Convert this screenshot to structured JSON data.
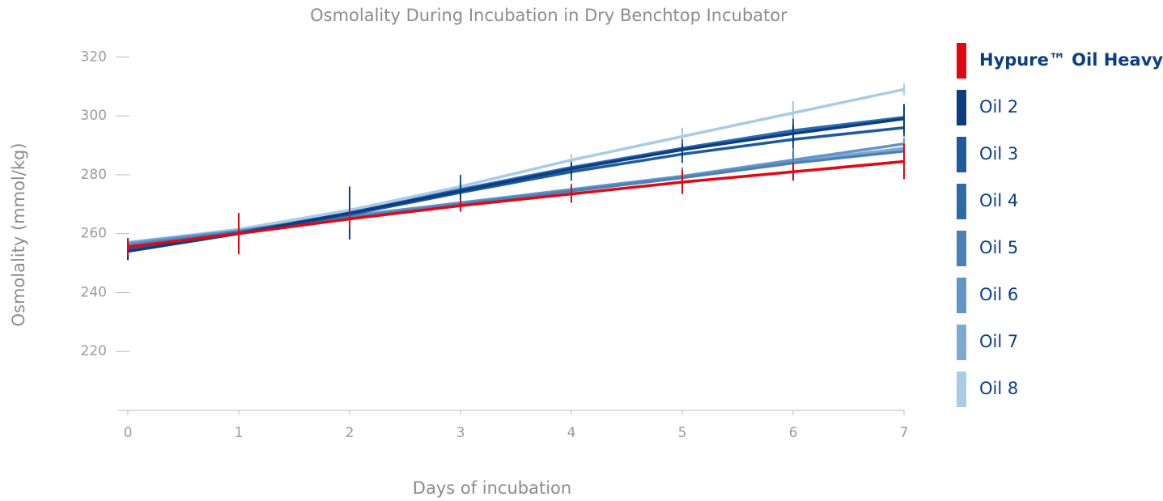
{
  "chart_data": {
    "type": "line",
    "title": "Osmolality During Incubation in Dry Benchtop Incubator",
    "x_label": "Days of incubation",
    "y_label": "Osmolality (mmol/kg)",
    "x": [
      0,
      1,
      2,
      3,
      4,
      5,
      6,
      7
    ],
    "xlim": [
      0,
      7
    ],
    "xticks": [
      0,
      1,
      2,
      3,
      4,
      5,
      6,
      7
    ],
    "ylim": [
      200,
      330
    ],
    "yticks": [
      220,
      240,
      260,
      280,
      300,
      320
    ],
    "series": [
      {
        "name": "Hypure™ Oil Heavy",
        "color": "#e30613",
        "values": [
          255.5,
          260,
          265,
          269.5,
          273.5,
          277.5,
          281,
          284.5
        ],
        "errors": [
          3,
          7,
          3,
          2,
          3,
          4,
          3,
          6
        ]
      },
      {
        "name": "Oil 2",
        "color": "#0b3d84",
        "values": [
          254,
          260,
          267,
          274.5,
          282,
          288.5,
          294,
          299
        ],
        "errors": [
          3,
          2,
          9,
          3,
          2,
          2,
          3,
          5
        ]
      },
      {
        "name": "Oil 3",
        "color": "#1f5a9a",
        "values": [
          254.5,
          260,
          266.5,
          274,
          281,
          287,
          292,
          296
        ],
        "errors": [
          2,
          2,
          3,
          6,
          3,
          3,
          3,
          3
        ]
      },
      {
        "name": "Oil 4",
        "color": "#2e6aa8",
        "values": [
          255,
          260.5,
          267,
          275,
          282.5,
          289,
          295,
          299.5
        ],
        "errors": [
          1,
          1,
          1,
          1,
          2,
          3,
          4,
          2
        ]
      },
      {
        "name": "Oil 5",
        "color": "#4a82b8",
        "values": [
          256,
          260.5,
          265.5,
          270,
          274.5,
          279,
          284,
          288
        ],
        "errors": [
          1,
          1,
          1,
          1,
          2,
          3,
          4,
          2
        ]
      },
      {
        "name": "Oil 6",
        "color": "#6495c4",
        "values": [
          256.5,
          261,
          266,
          270.5,
          275,
          279.5,
          285,
          290.5
        ],
        "errors": [
          1,
          1,
          1,
          1,
          2,
          3,
          4,
          2
        ]
      },
      {
        "name": "Oil 7",
        "color": "#7eaad2",
        "values": [
          257,
          261,
          266,
          270,
          274.5,
          279,
          284.5,
          289
        ],
        "errors": [
          1,
          1,
          1,
          1,
          2,
          3,
          4,
          2
        ]
      },
      {
        "name": "Oil 8",
        "color": "#a8cbe6",
        "values": [
          257,
          261.5,
          268,
          276,
          285,
          293,
          301,
          309
        ],
        "errors": [
          1,
          1,
          1,
          2,
          2,
          3,
          4,
          2
        ]
      }
    ]
  }
}
